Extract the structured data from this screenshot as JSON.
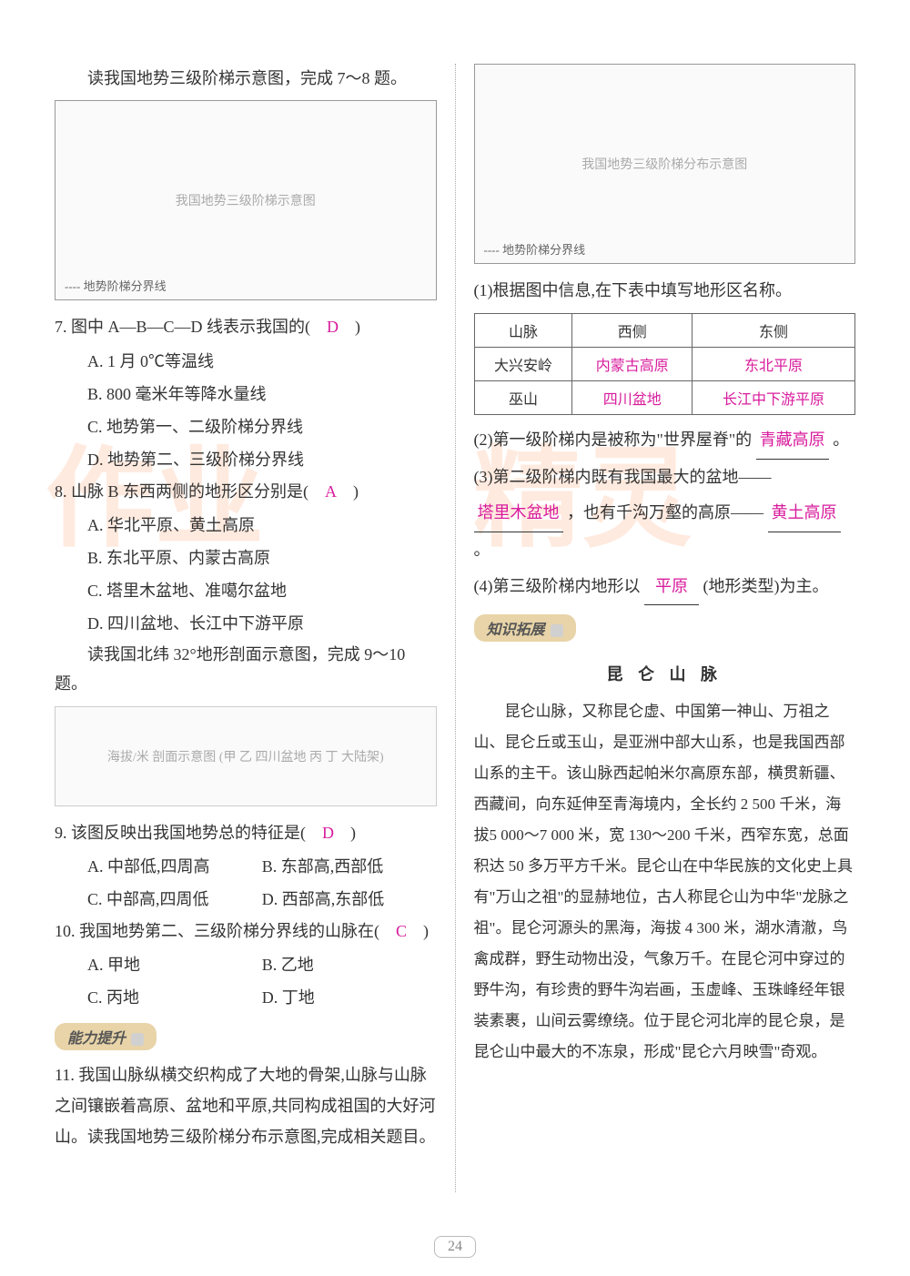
{
  "left": {
    "instr1": "读我国地势三级阶梯示意图，完成 7～8 题。",
    "map1_label": "---- 地势阶梯分界线",
    "map1_hint": "我国地势三级阶梯示意图",
    "q7": {
      "stem": "7. 图中 A—B—C—D 线表示我国的(　",
      "ans": "D",
      "stem_end": "　)",
      "a": "A. 1 月 0℃等温线",
      "b": "B. 800 毫米年等降水量线",
      "c": "C. 地势第一、二级阶梯分界线",
      "d": "D. 地势第二、三级阶梯分界线"
    },
    "q8": {
      "stem": "8. 山脉 B 东西两侧的地形区分别是(　",
      "ans": "A",
      "stem_end": "　)",
      "a": "A. 华北平原、黄土高原",
      "b": "B. 东北平原、内蒙古高原",
      "c": "C. 塔里木盆地、准噶尔盆地",
      "d": "D. 四川盆地、长江中下游平原"
    },
    "instr2": "读我国北纬 32°地形剖面示意图，完成 9～10 题。",
    "chart_hint": "海拔/米 剖面示意图 (甲 乙 四川盆地 丙 丁 大陆架)",
    "q9": {
      "stem": "9. 该图反映出我国地势总的特征是(　",
      "ans": "D",
      "stem_end": "　)",
      "a": "A. 中部低,四周高",
      "b": "B. 东部高,西部低",
      "c": "C. 中部高,四周低",
      "d": "D. 西部高,东部低"
    },
    "q10": {
      "stem": "10. 我国地势第二、三级阶梯分界线的山脉在(　",
      "ans": "C",
      "stem_end": "　)",
      "a": "A. 甲地",
      "b": "B. 乙地",
      "c": "C. 丙地",
      "d": "D. 丁地"
    },
    "badge1": "能力提升",
    "q11": "11. 我国山脉纵横交织构成了大地的骨架,山脉与山脉之间镶嵌着高原、盆地和平原,共同构成祖国的大好河山。读我国地势三级阶梯分布示意图,完成相关题目。"
  },
  "right": {
    "map2_label": "---- 地势阶梯分界线",
    "map2_hint": "我国地势三级阶梯分布示意图",
    "p1": "(1)根据图中信息,在下表中填写地形区名称。",
    "table": {
      "h1": "山脉",
      "h2": "西侧",
      "h3": "东侧",
      "r1c1": "大兴安岭",
      "r1c2": "内蒙古高原",
      "r1c3": "东北平原",
      "r2c1": "巫山",
      "r2c2": "四川盆地",
      "r2c3": "长江中下游平原"
    },
    "p2_a": "(2)第一级阶梯内是被称为\"世界屋脊\"的",
    "p2_ans1": "青藏高原",
    "p2_b": "。",
    "p3_a": "(3)第二级阶梯内既有我国最大的盆地——",
    "p3_ans1": "塔里木盆地",
    "p3_b": "，也有千沟万壑的高原——",
    "p3_ans2": "黄土高原",
    "p3_c": "。",
    "p4_a": "(4)第三级阶梯内地形以",
    "p4_ans1": "平原",
    "p4_b": "(地形类型)为主。",
    "badge2": "知识拓展",
    "title": "昆 仑 山 脉",
    "article": "昆仑山脉，又称昆仑虚、中国第一神山、万祖之山、昆仑丘或玉山，是亚洲中部大山系，也是我国西部山系的主干。该山脉西起帕米尔高原东部，横贯新疆、西藏间，向东延伸至青海境内，全长约 2 500 千米，海拔5 000～7 000 米，宽 130～200 千米，西窄东宽，总面积达 50 多万平方千米。昆仑山在中华民族的文化史上具有\"万山之祖\"的显赫地位，古人称昆仑山为中华\"龙脉之祖\"。昆仑河源头的黑海，海拔 4 300 米，湖水清澈，鸟禽成群，野生动物出没，气象万千。在昆仑河中穿过的野牛沟，有珍贵的野牛沟岩画，玉虚峰、玉珠峰经年银装素裹，山间云雾缭绕。位于昆仑河北岸的昆仑泉，是昆仑山中最大的不冻泉，形成\"昆仑六月映雪\"奇观。"
  },
  "page_number": "24",
  "watermark1": "作业",
  "watermark2": "精灵",
  "stamp": "精灵"
}
